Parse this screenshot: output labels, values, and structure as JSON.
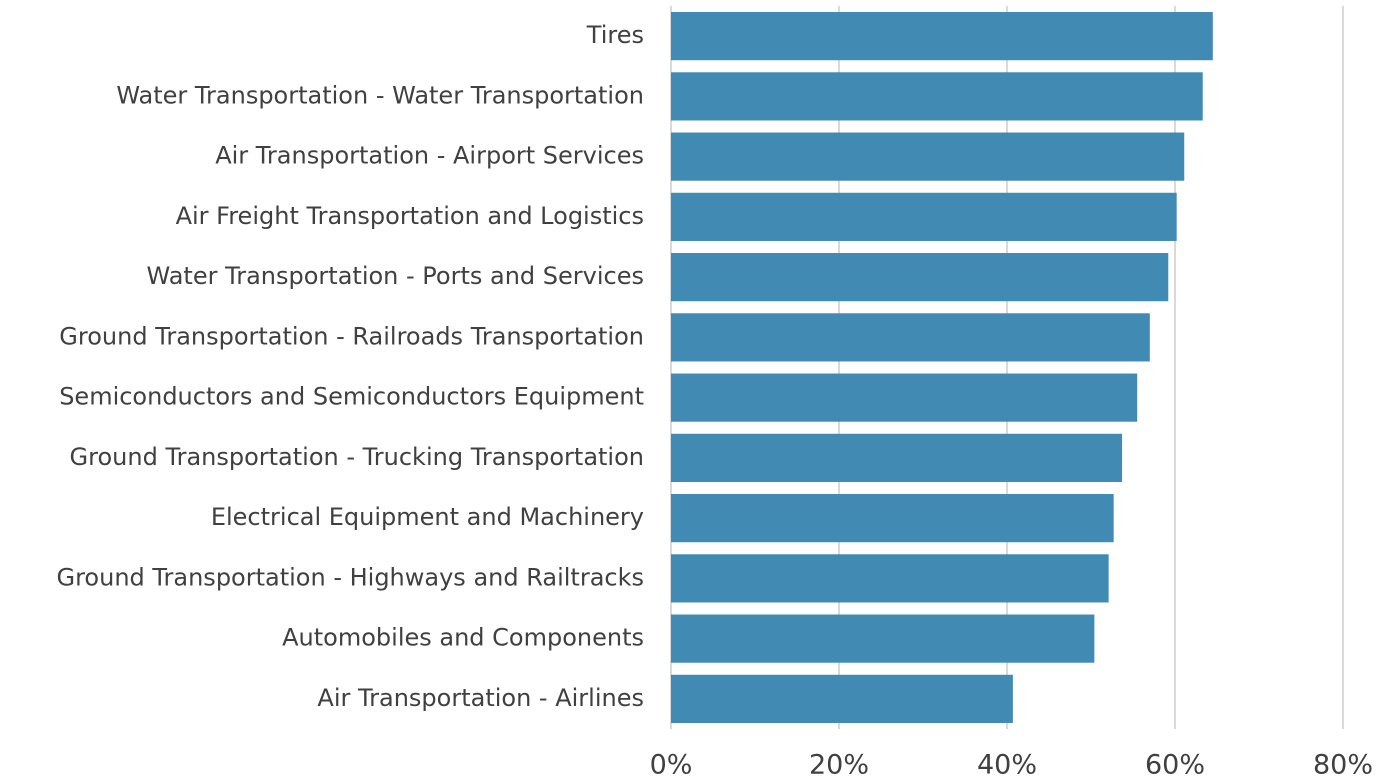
{
  "chart_data": {
    "type": "barh",
    "categories": [
      "Tires",
      "Water Transportation - Water Transportation",
      "Air Transportation - Airport Services",
      "Air Freight Transportation and Logistics",
      "Water Transportation - Ports and Services",
      "Ground Transportation - Railroads Transportation",
      "Semiconductors and Semiconductors Equipment",
      "Ground Transportation - Trucking Transportation",
      "Electrical Equipment and Machinery",
      "Ground Transportation - Highways and Railtracks",
      "Automobiles and Components",
      "Air Transportation - Airlines"
    ],
    "values": [
      64.5,
      63.3,
      61.1,
      60.2,
      59.2,
      57.0,
      55.5,
      53.7,
      52.7,
      52.1,
      50.4,
      40.7
    ],
    "color": "#418ab3",
    "xlim": [
      0,
      80
    ],
    "xticks": [
      {
        "value": 0,
        "label": "0%"
      },
      {
        "value": 20,
        "label": "20%"
      },
      {
        "value": 40,
        "label": "40%"
      },
      {
        "value": 60,
        "label": "60%"
      },
      {
        "value": 80,
        "label": "80%"
      }
    ],
    "grid": true
  }
}
